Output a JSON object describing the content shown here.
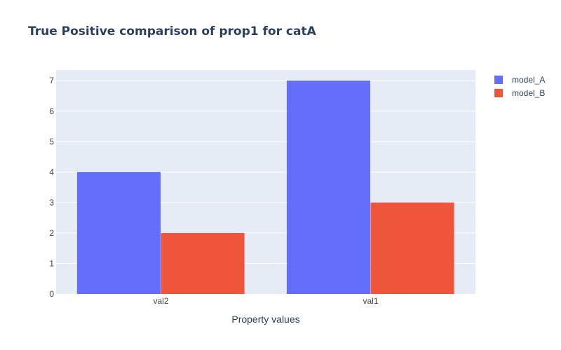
{
  "colors": {
    "plot_bg": "#e5ecf6",
    "grid": "#ffffff",
    "text": "#2a3f5f",
    "tick_text": "#444444"
  },
  "chart_data": {
    "type": "bar",
    "barmode": "group",
    "title": "True Positive comparison of prop1 for catA",
    "xlabel": "Property values",
    "ylabel": "",
    "categories": [
      "val2",
      "val1"
    ],
    "ylim": [
      0,
      7.35
    ],
    "yticks": [
      0,
      1,
      2,
      3,
      4,
      5,
      6,
      7
    ],
    "grid": true,
    "legend_position": "top-right",
    "series": [
      {
        "name": "model_A",
        "values": [
          4,
          7
        ],
        "color": "#636efa"
      },
      {
        "name": "model_B",
        "values": [
          2,
          3
        ],
        "color": "#ef553b"
      }
    ]
  }
}
